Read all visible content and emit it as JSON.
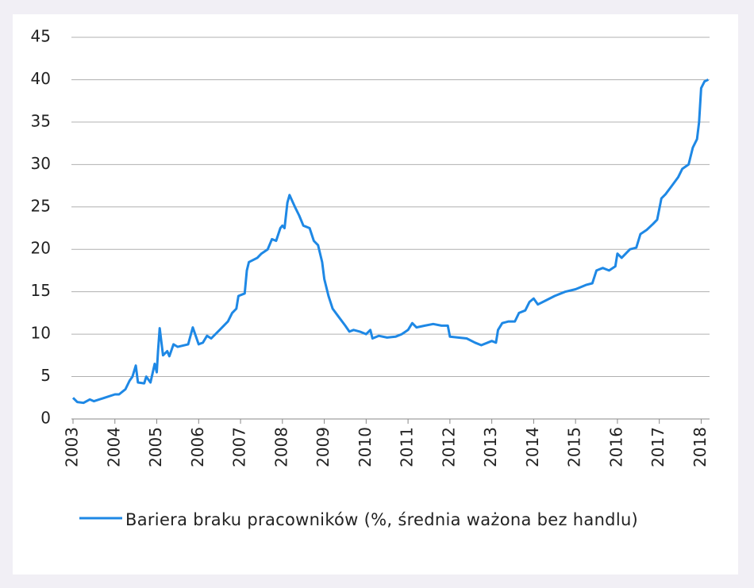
{
  "chart_data": {
    "type": "line",
    "x": [
      2003.0,
      2003.1,
      2003.25,
      2003.4,
      2003.5,
      2003.75,
      2004.0,
      2004.1,
      2004.25,
      2004.35,
      2004.42,
      2004.5,
      2004.55,
      2004.7,
      2004.75,
      2004.85,
      2004.95,
      2005.0,
      2005.03,
      2005.07,
      2005.15,
      2005.25,
      2005.3,
      2005.4,
      2005.5,
      2005.75,
      2005.86,
      2006.0,
      2006.1,
      2006.2,
      2006.3,
      2006.5,
      2006.7,
      2006.8,
      2006.9,
      2006.95,
      2007.1,
      2007.15,
      2007.2,
      2007.4,
      2007.5,
      2007.65,
      2007.75,
      2007.85,
      2007.95,
      2008.0,
      2008.05,
      2008.12,
      2008.17,
      2008.3,
      2008.4,
      2008.5,
      2008.65,
      2008.75,
      2008.85,
      2008.95,
      2009.0,
      2009.1,
      2009.2,
      2009.35,
      2009.5,
      2009.6,
      2009.7,
      2009.85,
      2010.0,
      2010.1,
      2010.15,
      2010.3,
      2010.5,
      2010.7,
      2010.85,
      2011.0,
      2011.1,
      2011.2,
      2011.4,
      2011.6,
      2011.8,
      2011.95,
      2012.0,
      2012.2,
      2012.4,
      2012.6,
      2012.75,
      2012.9,
      2013.0,
      2013.1,
      2013.15,
      2013.25,
      2013.4,
      2013.55,
      2013.65,
      2013.8,
      2013.9,
      2014.0,
      2014.1,
      2014.3,
      2014.5,
      2014.75,
      2015.0,
      2015.25,
      2015.4,
      2015.5,
      2015.65,
      2015.8,
      2015.95,
      2016.0,
      2016.1,
      2016.3,
      2016.45,
      2016.55,
      2016.7,
      2016.85,
      2016.95,
      2017.05,
      2017.15,
      2017.3,
      2017.45,
      2017.55,
      2017.7,
      2017.8,
      2017.9,
      2017.95,
      2018.0,
      2018.08,
      2018.17
    ],
    "series": [
      {
        "name": "Bariera braku pracowników (%, średnia ważona bez handlu)",
        "color": "#1e88e5",
        "values": [
          2.5,
          2.0,
          1.9,
          2.3,
          2.1,
          2.5,
          2.9,
          2.9,
          3.5,
          4.5,
          5.0,
          6.3,
          4.3,
          4.2,
          5.0,
          4.3,
          6.5,
          5.5,
          8.0,
          10.7,
          7.5,
          8.0,
          7.4,
          8.8,
          8.5,
          8.8,
          10.8,
          8.8,
          9.0,
          9.8,
          9.5,
          10.5,
          11.5,
          12.5,
          13.0,
          14.5,
          14.8,
          17.5,
          18.5,
          19.0,
          19.5,
          20.0,
          21.2,
          21.0,
          22.5,
          22.8,
          22.5,
          25.5,
          26.4,
          25.0,
          24.0,
          22.8,
          22.5,
          21.0,
          20.5,
          18.5,
          16.5,
          14.5,
          13.0,
          12.0,
          11.0,
          10.3,
          10.5,
          10.3,
          10.0,
          10.5,
          9.5,
          9.8,
          9.6,
          9.7,
          10.0,
          10.5,
          11.3,
          10.8,
          11.0,
          11.2,
          11.0,
          11.0,
          9.7,
          9.6,
          9.5,
          9.0,
          8.7,
          9.0,
          9.2,
          9.0,
          10.5,
          11.3,
          11.5,
          11.5,
          12.5,
          12.8,
          13.8,
          14.2,
          13.5,
          14.0,
          14.5,
          15.0,
          15.3,
          15.8,
          16.0,
          17.5,
          17.8,
          17.5,
          18.0,
          19.5,
          19.0,
          20.0,
          20.2,
          21.8,
          22.3,
          23.0,
          23.5,
          26.0,
          26.5,
          27.5,
          28.5,
          29.5,
          30.0,
          32.0,
          33.0,
          35.0,
          39.0,
          39.8,
          40.0
        ]
      }
    ],
    "xlim": [
      2003,
      2018.2
    ],
    "xticks": [
      2003,
      2004,
      2005,
      2006,
      2007,
      2008,
      2009,
      2010,
      2011,
      2012,
      2013,
      2014,
      2015,
      2016,
      2017,
      2018
    ],
    "ylim": [
      0,
      45
    ],
    "yticks": [
      0,
      5,
      10,
      15,
      20,
      25,
      30,
      35,
      40,
      45
    ],
    "grid": true
  }
}
